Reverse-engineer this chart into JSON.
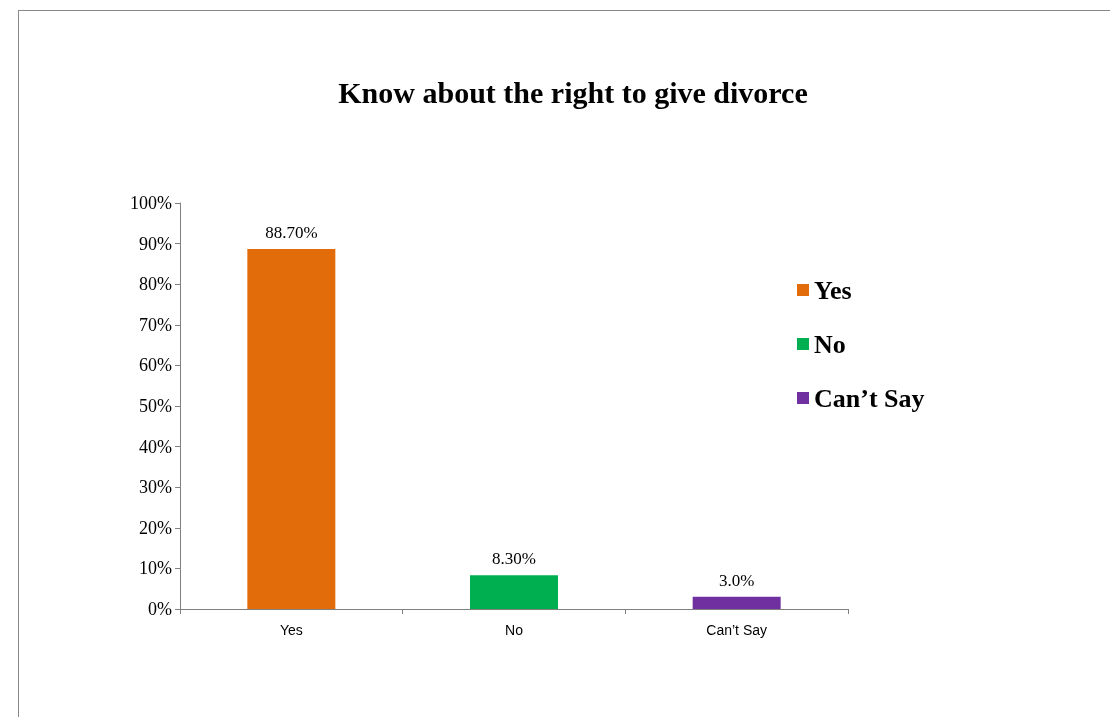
{
  "chart_data": {
    "type": "bar",
    "title": "Know about the right to give divorce",
    "categories": [
      "Yes",
      "No",
      "Can’t Say"
    ],
    "series": [
      {
        "name": "Yes",
        "color": "#e36c0a",
        "values": [
          88.7,
          null,
          null
        ],
        "value_labels": [
          "88.70%",
          null,
          null
        ]
      },
      {
        "name": "No",
        "color": "#00b050",
        "values": [
          null,
          8.3,
          null
        ],
        "value_labels": [
          null,
          "8.30%",
          null
        ]
      },
      {
        "name": "Can’t Say",
        "color": "#7030a0",
        "values": [
          null,
          null,
          3.0
        ],
        "value_labels": [
          null,
          null,
          "3.0%"
        ]
      }
    ],
    "ylim": [
      0,
      100
    ],
    "yticks": [
      {
        "value": 0,
        "label": "0%"
      },
      {
        "value": 10,
        "label": "10%"
      },
      {
        "value": 20,
        "label": "20%"
      },
      {
        "value": 30,
        "label": "30%"
      },
      {
        "value": 40,
        "label": "40%"
      },
      {
        "value": 50,
        "label": "50%"
      },
      {
        "value": 60,
        "label": "60%"
      },
      {
        "value": 70,
        "label": "70%"
      },
      {
        "value": 80,
        "label": "80%"
      },
      {
        "value": 90,
        "label": "90%"
      },
      {
        "value": 100,
        "label": "100%"
      }
    ],
    "grid": false,
    "legend": "right"
  }
}
